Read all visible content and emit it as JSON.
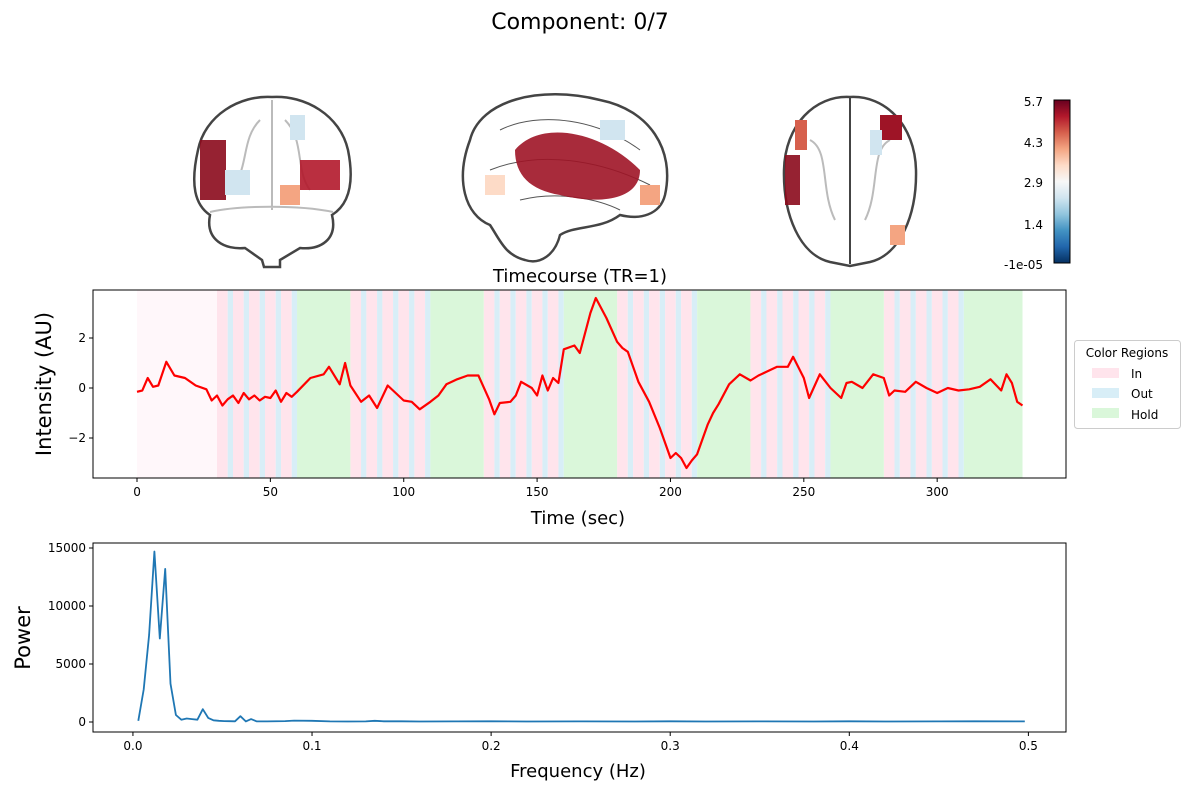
{
  "title": "Component: 0/7",
  "colorbar": {
    "ticks": [
      "5.7",
      "4.3",
      "2.9",
      "1.4",
      "-1e-05"
    ],
    "colors": [
      "#67001f",
      "#b2182b",
      "#d6604d",
      "#f4a582",
      "#fddbc7",
      "#f7f7f7",
      "#d1e5f0",
      "#92c5de",
      "#4393c3",
      "#2166ac",
      "#053061"
    ]
  },
  "chart_data": [
    {
      "type": "line",
      "title": "Timecourse (TR=1)",
      "xlabel": "Time (sec)",
      "ylabel": "Intensity (AU)",
      "xlim": [
        -16.5,
        348.3
      ],
      "ylim": [
        -3.6,
        3.92
      ],
      "xticks": [
        0,
        50,
        100,
        150,
        200,
        250,
        300
      ],
      "yticks": [
        -2,
        0,
        2
      ],
      "line_color": "#ff0000",
      "legend": {
        "title": "Color Regions",
        "placement": "right",
        "entries": [
          {
            "label": "In",
            "color": "#ffe4ec"
          },
          {
            "label": "Out",
            "color": "#d8eef7"
          },
          {
            "label": "Hold",
            "color": "#daf7da"
          }
        ]
      },
      "regions": {
        "baseline": {
          "start": 0,
          "end": 30,
          "color": "#fff7fa"
        },
        "stripe_blocks": [
          30,
          80,
          130,
          180,
          230,
          280
        ],
        "stripe_pattern": [
          [
            "In",
            4
          ],
          [
            "Out",
            2
          ],
          [
            "In",
            4
          ],
          [
            "Out",
            2
          ],
          [
            "In",
            4
          ],
          [
            "Out",
            2
          ],
          [
            "In",
            4
          ],
          [
            "Out",
            2
          ],
          [
            "In",
            4
          ],
          [
            "Out",
            2
          ]
        ],
        "hold_blocks": [
          [
            60,
            80
          ],
          [
            110,
            130
          ],
          [
            160,
            180
          ],
          [
            210,
            230
          ],
          [
            260,
            280
          ],
          [
            310,
            332
          ]
        ]
      },
      "x": [
        0,
        2,
        4,
        6,
        8,
        11,
        14,
        18,
        22,
        26,
        28,
        30,
        32,
        34,
        36,
        38,
        40,
        42,
        44,
        46,
        48,
        50,
        52,
        54,
        56,
        58,
        60,
        65,
        70,
        72,
        76,
        78,
        80,
        84,
        87,
        90,
        94,
        97,
        100,
        103,
        106,
        110,
        113,
        116,
        120,
        124,
        128,
        132,
        134,
        136,
        140,
        142,
        144,
        148,
        150,
        152,
        154,
        156,
        158,
        160,
        164,
        166,
        170,
        172,
        176,
        180,
        182,
        184,
        188,
        192,
        196,
        200,
        202,
        204,
        206,
        208,
        210,
        214,
        216,
        218,
        222,
        226,
        230,
        233,
        236,
        240,
        244,
        246,
        250,
        252,
        256,
        260,
        264,
        266,
        268,
        272,
        276,
        280,
        282,
        284,
        288,
        292,
        296,
        300,
        304,
        308,
        312,
        316,
        320,
        324,
        326,
        328,
        330,
        332
      ],
      "y": [
        -0.15,
        -0.1,
        0.4,
        0.05,
        0.1,
        1.05,
        0.5,
        0.4,
        0.1,
        -0.05,
        -0.5,
        -0.3,
        -0.7,
        -0.45,
        -0.3,
        -0.6,
        -0.2,
        -0.45,
        -0.3,
        -0.5,
        -0.35,
        -0.4,
        -0.1,
        -0.55,
        -0.2,
        -0.35,
        -0.15,
        0.4,
        0.55,
        0.85,
        0.15,
        1.0,
        0.1,
        -0.55,
        -0.3,
        -0.8,
        0.1,
        -0.2,
        -0.5,
        -0.55,
        -0.85,
        -0.55,
        -0.3,
        0.15,
        0.35,
        0.5,
        0.5,
        -0.45,
        -1.05,
        -0.6,
        -0.55,
        -0.3,
        0.25,
        0.0,
        -0.3,
        0.5,
        -0.1,
        0.4,
        0.2,
        1.55,
        1.7,
        1.4,
        3.0,
        3.6,
        2.8,
        1.85,
        1.6,
        1.45,
        0.25,
        -0.55,
        -1.6,
        -2.8,
        -2.6,
        -2.8,
        -3.2,
        -2.9,
        -2.65,
        -1.45,
        -1.0,
        -0.65,
        0.15,
        0.55,
        0.3,
        0.5,
        0.65,
        0.85,
        0.85,
        1.25,
        0.4,
        -0.4,
        0.55,
        0.0,
        -0.4,
        0.2,
        0.25,
        0.0,
        0.55,
        0.4,
        -0.3,
        -0.1,
        -0.15,
        0.25,
        0.0,
        -0.2,
        0.0,
        -0.1,
        -0.05,
        0.05,
        0.35,
        -0.1,
        0.55,
        0.2,
        -0.55,
        -0.7
      ]
    },
    {
      "type": "line",
      "title": "",
      "xlabel": "Frequency (Hz)",
      "ylabel": "Power",
      "xlim": [
        -0.0223,
        0.521
      ],
      "ylim": [
        -862,
        15431
      ],
      "xticks": [
        0.0,
        0.1,
        0.2,
        0.3,
        0.4,
        0.5
      ],
      "xtick_labels": [
        "0.0",
        "0.1",
        "0.2",
        "0.3",
        "0.4",
        "0.5"
      ],
      "yticks": [
        0,
        5000,
        10000,
        15000
      ],
      "line_color": "#1f77b4",
      "x": [
        0.003,
        0.006,
        0.009,
        0.012,
        0.015,
        0.018,
        0.021,
        0.024,
        0.027,
        0.03,
        0.033,
        0.036,
        0.039,
        0.042,
        0.045,
        0.048,
        0.051,
        0.054,
        0.057,
        0.06,
        0.063,
        0.066,
        0.069,
        0.075,
        0.085,
        0.09,
        0.1,
        0.11,
        0.12,
        0.13,
        0.135,
        0.14,
        0.15,
        0.16,
        0.18,
        0.2,
        0.22,
        0.25,
        0.28,
        0.3,
        0.32,
        0.35,
        0.38,
        0.4,
        0.42,
        0.45,
        0.47,
        0.498
      ],
      "y": [
        100,
        2800,
        7500,
        14700,
        7200,
        13200,
        3300,
        600,
        200,
        300,
        250,
        200,
        1100,
        350,
        150,
        100,
        80,
        70,
        60,
        500,
        50,
        250,
        60,
        50,
        80,
        120,
        100,
        50,
        40,
        50,
        100,
        60,
        60,
        40,
        50,
        60,
        40,
        50,
        40,
        60,
        40,
        50,
        40,
        60,
        40,
        50,
        60,
        50
      ]
    }
  ]
}
